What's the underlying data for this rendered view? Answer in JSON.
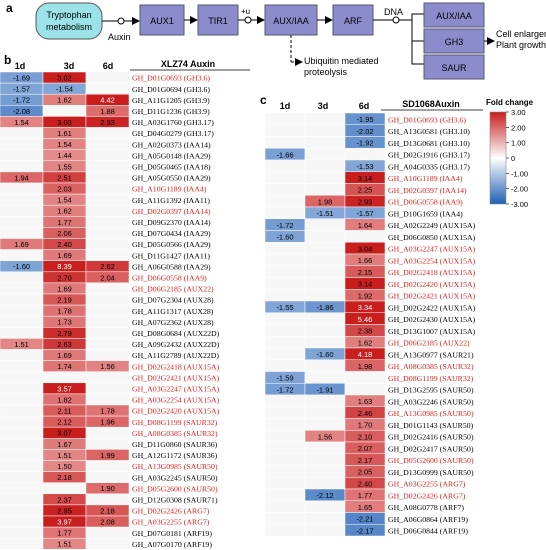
{
  "panel_labels": {
    "a": "a",
    "b": "b",
    "c": "c"
  },
  "pathway": {
    "tryptophan": [
      "Tryptophan",
      "metabolism"
    ],
    "auxin": "Auxin",
    "aux1": "AUX1",
    "tir1": "TIR1",
    "plus_u": "+u",
    "auxiaa": "AUX/IAA",
    "arf": "ARF",
    "dna": "DNA",
    "targets": [
      "AUX/IAA",
      "GH3",
      "SAUR"
    ],
    "ubiquitin": [
      "Ubiquitin mediated",
      "proteolysis"
    ],
    "outcome": [
      "Cell enlargement",
      "Plant growth"
    ]
  },
  "colors": {
    "box_fill": "#8c8ccd",
    "box_stroke": "#555577",
    "tryptophan_fill": "#9be3e8",
    "neg_strong": "#1f5fb4",
    "pos_strong": "#c81e1e",
    "highlight_text": "#e3201c"
  },
  "legend": {
    "title": "Fold change",
    "ticks": [
      "3.00",
      "2.00",
      "1.00",
      "0",
      "-1.00",
      "-2.00",
      "-3.00"
    ]
  },
  "heatmap_b": {
    "columns": [
      "1d",
      "3d",
      "6d"
    ],
    "title": "XLZ74 Auxin",
    "rows": [
      {
        "gene": "GH_D01G0693 (GH3.6)",
        "v": [
          -1.69,
          3.02,
          null
        ],
        "red": true
      },
      {
        "gene": "GH_D01G0694 (GH3.6)",
        "v": [
          -1.57,
          -1.54,
          null
        ],
        "red": false
      },
      {
        "gene": "GH_A11G1205 (GH3.9)",
        "v": [
          -1.72,
          1.62,
          4.42
        ],
        "red": false
      },
      {
        "gene": "GH_D11G1236 (GH3.9)",
        "v": [
          -2.08,
          null,
          1.88
        ],
        "red": false
      },
      {
        "gene": "GH_A03G1760 (GH3.17)",
        "v": [
          1.54,
          3.03,
          2.93
        ],
        "red": false
      },
      {
        "gene": "GH_D04G0279 (GH3.17)",
        "v": [
          null,
          1.61,
          null
        ],
        "red": false
      },
      {
        "gene": "GH_A02G0373 (IAA14)",
        "v": [
          null,
          1.54,
          null
        ],
        "red": false
      },
      {
        "gene": "GH_A05G0148 (IAA29)",
        "v": [
          null,
          1.44,
          null
        ],
        "red": false
      },
      {
        "gene": "GH_D05G0465 (IAA18)",
        "v": [
          null,
          1.55,
          null
        ],
        "red": false
      },
      {
        "gene": "GH_A05G0550 (IAA29)",
        "v": [
          1.94,
          2.51,
          null
        ],
        "red": false
      },
      {
        "gene": "GH_A10G1189 (IAA4)",
        "v": [
          null,
          2.03,
          null
        ],
        "red": true
      },
      {
        "gene": "GH_A11G1392 (IAA11)",
        "v": [
          null,
          1.54,
          null
        ],
        "red": false
      },
      {
        "gene": "GH_D02G0397 (IAA14)",
        "v": [
          null,
          1.62,
          null
        ],
        "red": true
      },
      {
        "gene": "GH_D09G2370 (IAA14)",
        "v": [
          null,
          1.77,
          null
        ],
        "red": false
      },
      {
        "gene": "GH_D07G0434 (IAA29)",
        "v": [
          null,
          2.06,
          null
        ],
        "red": false
      },
      {
        "gene": "GH_D05G0566 (IAA29)",
        "v": [
          1.69,
          2.4,
          null
        ],
        "red": false
      },
      {
        "gene": "GH_D11G1427 (IAA11)",
        "v": [
          null,
          1.69,
          null
        ],
        "red": false
      },
      {
        "gene": "GH_A06G0588 (IAA29)",
        "v": [
          -1.6,
          8.39,
          2.62
        ],
        "red": false
      },
      {
        "gene": "GH_D06G0558 (IAA9)",
        "v": [
          null,
          2.7,
          2.04
        ],
        "red": true
      },
      {
        "gene": "GH_D06G2185 (AUX22)",
        "v": [
          null,
          1.69,
          null
        ],
        "red": true
      },
      {
        "gene": "GH_D07G2304 (AUX28)",
        "v": [
          null,
          2.19,
          null
        ],
        "red": false
      },
      {
        "gene": "GH_A11G1317 (AUX28)",
        "v": [
          null,
          1.78,
          null
        ],
        "red": false
      },
      {
        "gene": "GH_A07G2362 (AUX28)",
        "v": [
          null,
          1.73,
          null
        ],
        "red": false
      },
      {
        "gene": "GH_D08G0684 (AUX22D)",
        "v": [
          null,
          2.79,
          null
        ],
        "red": false
      },
      {
        "gene": "GH_A09G2432 (AUX22D)",
        "v": [
          1.51,
          2.63,
          null
        ],
        "red": false
      },
      {
        "gene": "GH_A11G2789 (AUX22D)",
        "v": [
          null,
          1.69,
          null
        ],
        "red": false
      },
      {
        "gene": "GH_D02G2418 (AUX15A)",
        "v": [
          null,
          1.74,
          1.56
        ],
        "red": true
      },
      {
        "gene": "GH_D02G2421 (AUX15A)",
        "v": [
          null,
          null,
          null
        ],
        "red": true
      },
      {
        "gene": "GH_A03G2247 (AUX15A)",
        "v": [
          null,
          3.57,
          null
        ],
        "red": true
      },
      {
        "gene": "GH_A03G2254 (AUX15A)",
        "v": [
          null,
          1.82,
          null
        ],
        "red": true
      },
      {
        "gene": "GH_D02G2420 (AUX15A)",
        "v": [
          null,
          2.11,
          1.78
        ],
        "red": true
      },
      {
        "gene": "GH_D08G1199 (SAUR32)",
        "v": [
          null,
          2.12,
          1.96
        ],
        "red": true
      },
      {
        "gene": "GH_A08G0385 (SAUR32)",
        "v": [
          null,
          3.07,
          null
        ],
        "red": true
      },
      {
        "gene": "GH_D11G0860 (SAUR36)",
        "v": [
          null,
          1.67,
          null
        ],
        "red": false
      },
      {
        "gene": "GH_A12G1172 (SAUR36)",
        "v": [
          null,
          1.51,
          1.99
        ],
        "red": false
      },
      {
        "gene": "GH_A13G0985 (SAUR50)",
        "v": [
          null,
          1.5,
          null
        ],
        "red": true
      },
      {
        "gene": "GH_A03G2245 (SAUR50)",
        "v": [
          null,
          2.18,
          null
        ],
        "red": false
      },
      {
        "gene": "GH_D05G2600 (SAUR50)",
        "v": [
          null,
          null,
          1.9
        ],
        "red": true
      },
      {
        "gene": "GH_D12G0308 (SAUR71)",
        "v": [
          null,
          2.37,
          null
        ],
        "red": false
      },
      {
        "gene": "GH_D02G2426 (ARG7)",
        "v": [
          null,
          2.95,
          2.18
        ],
        "red": true
      },
      {
        "gene": "GH_A03G2255 (ARG7)",
        "v": [
          null,
          3.97,
          2.08
        ],
        "red": true
      },
      {
        "gene": "GH_D07G0181 (ARF19)",
        "v": [
          null,
          1.77,
          null
        ],
        "red": false
      },
      {
        "gene": "GH_A07G0170 (ARF19)",
        "v": [
          null,
          1.51,
          null
        ],
        "red": false
      }
    ]
  },
  "heatmap_c": {
    "columns": [
      "1d",
      "3d",
      "6d"
    ],
    "title": "SD1068Auxin",
    "rows": [
      {
        "gene": "GH_D01G0693 (GH3.6)",
        "v": [
          null,
          null,
          -1.95
        ],
        "red": true
      },
      {
        "gene": "GH_A13G0581 (GH3.10)",
        "v": [
          null,
          null,
          -2.02
        ],
        "red": false
      },
      {
        "gene": "GH_D13G0681 (GH3.10)",
        "v": [
          null,
          null,
          -1.92
        ],
        "red": false
      },
      {
        "gene": "GH_D02G1916 (GH3.17)",
        "v": [
          -1.66,
          null,
          null
        ],
        "red": false
      },
      {
        "gene": "GH_A04G0335 (GH3.17)",
        "v": [
          null,
          null,
          -1.53
        ],
        "red": false
      },
      {
        "gene": "GH_A10G1189 (IAA4)",
        "v": [
          null,
          null,
          3.14
        ],
        "red": true
      },
      {
        "gene": "GH_D02G0397 (IAA14)",
        "v": [
          null,
          null,
          2.25
        ],
        "red": true
      },
      {
        "gene": "GH_D06G0558 (IAA9)",
        "v": [
          null,
          1.98,
          2.93
        ],
        "red": true
      },
      {
        "gene": "GH_D10G1659 (IAA4)",
        "v": [
          null,
          -1.51,
          -1.57
        ],
        "red": false
      },
      {
        "gene": "GH_A02G2249 (AUX15A)",
        "v": [
          -1.72,
          null,
          1.64
        ],
        "red": false
      },
      {
        "gene": "GH_D06G0850 (AUX15A)",
        "v": [
          -1.6,
          null,
          null
        ],
        "red": false
      },
      {
        "gene": "GH_A03G2247 (AUX15A)",
        "v": [
          null,
          null,
          3.04
        ],
        "red": true
      },
      {
        "gene": "GH_A03G2254 (AUX15A)",
        "v": [
          null,
          null,
          1.66
        ],
        "red": true
      },
      {
        "gene": "GH_D02G2418 (AUX15A)",
        "v": [
          null,
          null,
          2.15
        ],
        "red": true
      },
      {
        "gene": "GH_D02G2420 (AUX15A)",
        "v": [
          null,
          null,
          3.14
        ],
        "red": true
      },
      {
        "gene": "GH_D02G2421 (AUX15A)",
        "v": [
          null,
          null,
          1.92
        ],
        "red": true
      },
      {
        "gene": "GH_D02G2422 (AUX15A)",
        "v": [
          -1.55,
          -1.86,
          3.34
        ],
        "red": false
      },
      {
        "gene": "GH_D02G2430 (AUX15A)",
        "v": [
          null,
          null,
          5.46
        ],
        "red": false
      },
      {
        "gene": "GH_D13G1007 (AUX15A)",
        "v": [
          null,
          null,
          2.38
        ],
        "red": false
      },
      {
        "gene": "GH_D06G2185 (AUX22)",
        "v": [
          null,
          null,
          1.62
        ],
        "red": true
      },
      {
        "gene": "GH_A13G0977 (SAUR21)",
        "v": [
          null,
          -1.6,
          4.18
        ],
        "red": false
      },
      {
        "gene": "GH_A08G0385 (SAUR32)",
        "v": [
          null,
          null,
          1.98
        ],
        "red": true
      },
      {
        "gene": "GH_D08G1199 (SAUR32)",
        "v": [
          -1.59,
          null,
          null
        ],
        "red": true
      },
      {
        "gene": "GH_D13G2595 (SAUR50)",
        "v": [
          -1.72,
          -1.91,
          null
        ],
        "red": false
      },
      {
        "gene": "GH_A03G2246 (SAUR50)",
        "v": [
          null,
          null,
          1.63
        ],
        "red": false
      },
      {
        "gene": "GH_A13G0985 (SAUR50)",
        "v": [
          null,
          null,
          2.46
        ],
        "red": true
      },
      {
        "gene": "GH_D01G1143 (SAUR50)",
        "v": [
          null,
          null,
          1.7
        ],
        "red": false
      },
      {
        "gene": "GH_D02G2416 (SAUR50)",
        "v": [
          null,
          1.56,
          2.1
        ],
        "red": false
      },
      {
        "gene": "GH_D02G2417 (SAUR50)",
        "v": [
          null,
          null,
          2.07
        ],
        "red": false
      },
      {
        "gene": "GH_D05G2600 (SAUR50)",
        "v": [
          null,
          null,
          2.17
        ],
        "red": true
      },
      {
        "gene": "GH_D13G0999 (SAUR50)",
        "v": [
          null,
          null,
          2.05
        ],
        "red": false
      },
      {
        "gene": "GH_A03G2255 (ARG7)",
        "v": [
          null,
          null,
          2.4
        ],
        "red": true
      },
      {
        "gene": "GH_D02G2426 (ARG7)",
        "v": [
          null,
          -2.12,
          1.77
        ],
        "red": true
      },
      {
        "gene": "GH_A08G0778 (ARF7)",
        "v": [
          null,
          null,
          1.65
        ],
        "red": false
      },
      {
        "gene": "GH_A06G0864 (ARF19)",
        "v": [
          null,
          null,
          -2.21
        ],
        "red": false
      },
      {
        "gene": "GH_D06G0844 (ARF19)",
        "v": [
          null,
          null,
          -2.17
        ],
        "red": false
      }
    ]
  }
}
